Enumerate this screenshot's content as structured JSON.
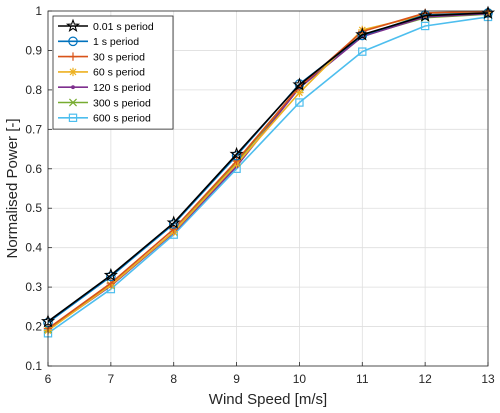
{
  "chart_data": {
    "type": "line",
    "title": "",
    "xlabel": "Wind Speed [m/s]",
    "ylabel": "Normalised Power [-]",
    "xlim": [
      6,
      13
    ],
    "ylim": [
      0.1,
      1
    ],
    "grid": true,
    "legend_position": "top-left",
    "x": [
      6,
      7,
      8,
      9,
      10,
      11,
      12,
      13
    ],
    "xticks": [
      "6",
      "7",
      "8",
      "9",
      "10",
      "11",
      "12",
      "13"
    ],
    "yticks": [
      "0.1",
      "0.2",
      "0.3",
      "0.4",
      "0.5",
      "0.6",
      "0.7",
      "0.8",
      "0.9",
      "1"
    ],
    "series": [
      {
        "name": "0.01 s period",
        "color": "#000000",
        "marker": "star",
        "values": [
          0.213,
          0.33,
          0.463,
          0.637,
          0.813,
          0.94,
          0.988,
          0.995
        ]
      },
      {
        "name": "1 s period",
        "color": "#0072BD",
        "marker": "circle",
        "values": [
          0.21,
          0.327,
          0.46,
          0.633,
          0.815,
          0.938,
          0.99,
          0.995
        ]
      },
      {
        "name": "30 s period",
        "color": "#D95319",
        "marker": "plus",
        "values": [
          0.195,
          0.31,
          0.447,
          0.62,
          0.808,
          0.948,
          0.995,
          0.999
        ]
      },
      {
        "name": "60 s period",
        "color": "#EDB120",
        "marker": "asterisk",
        "values": [
          0.19,
          0.305,
          0.44,
          0.612,
          0.793,
          0.952,
          0.99,
          0.997
        ]
      },
      {
        "name": "120 s period",
        "color": "#7E2F8E",
        "marker": "point",
        "values": [
          0.192,
          0.303,
          0.438,
          0.606,
          0.805,
          0.935,
          0.985,
          0.993
        ]
      },
      {
        "name": "300 s period",
        "color": "#77AC30",
        "marker": "x",
        "values": [
          0.193,
          0.305,
          0.44,
          0.617,
          0.805,
          0.937,
          0.983,
          0.992
        ]
      },
      {
        "name": "600 s period",
        "color": "#4DBEEE",
        "marker": "square",
        "values": [
          0.183,
          0.295,
          0.433,
          0.6,
          0.768,
          0.897,
          0.962,
          0.985
        ]
      }
    ]
  }
}
